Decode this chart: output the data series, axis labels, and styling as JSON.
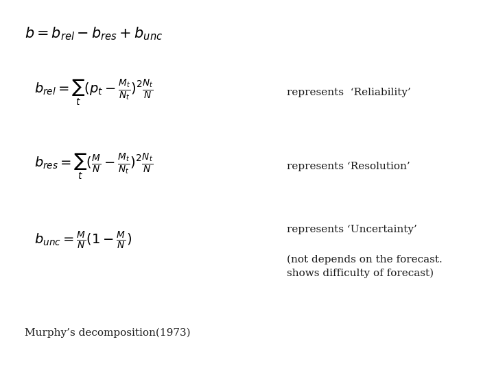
{
  "background_color": "#ffffff",
  "fig_width": 7.2,
  "fig_height": 5.4,
  "dpi": 100,
  "formula_top": "b = b_{rel} - b_{res} + b_{unc}",
  "formula_rel": "b_{rel} = \\sum_t (p_t - \\frac{M_t}{N_t})^2 \\frac{N_t}{N}",
  "formula_res": "b_{res} = \\sum_t (\\frac{M}{N} - \\frac{M_t}{N_t})^2 \\frac{N_t}{N}",
  "formula_unc": "b_{unc} = \\frac{M}{N}(1 - \\frac{M}{N})",
  "text_rel": "represents  ‘Reliability’",
  "text_res": "represents ‘Resolution’",
  "text_unc": "represents ‘Uncertainty’",
  "text_note": "(not depends on the forecast.\nshows difficulty of forecast)",
  "text_murphy": "Murphy’s decomposition(1973)",
  "formula_color": "#000000",
  "text_color": "#1a1a1a",
  "formula_fontsize": 13,
  "text_fontsize": 11,
  "murphy_fontsize": 11
}
